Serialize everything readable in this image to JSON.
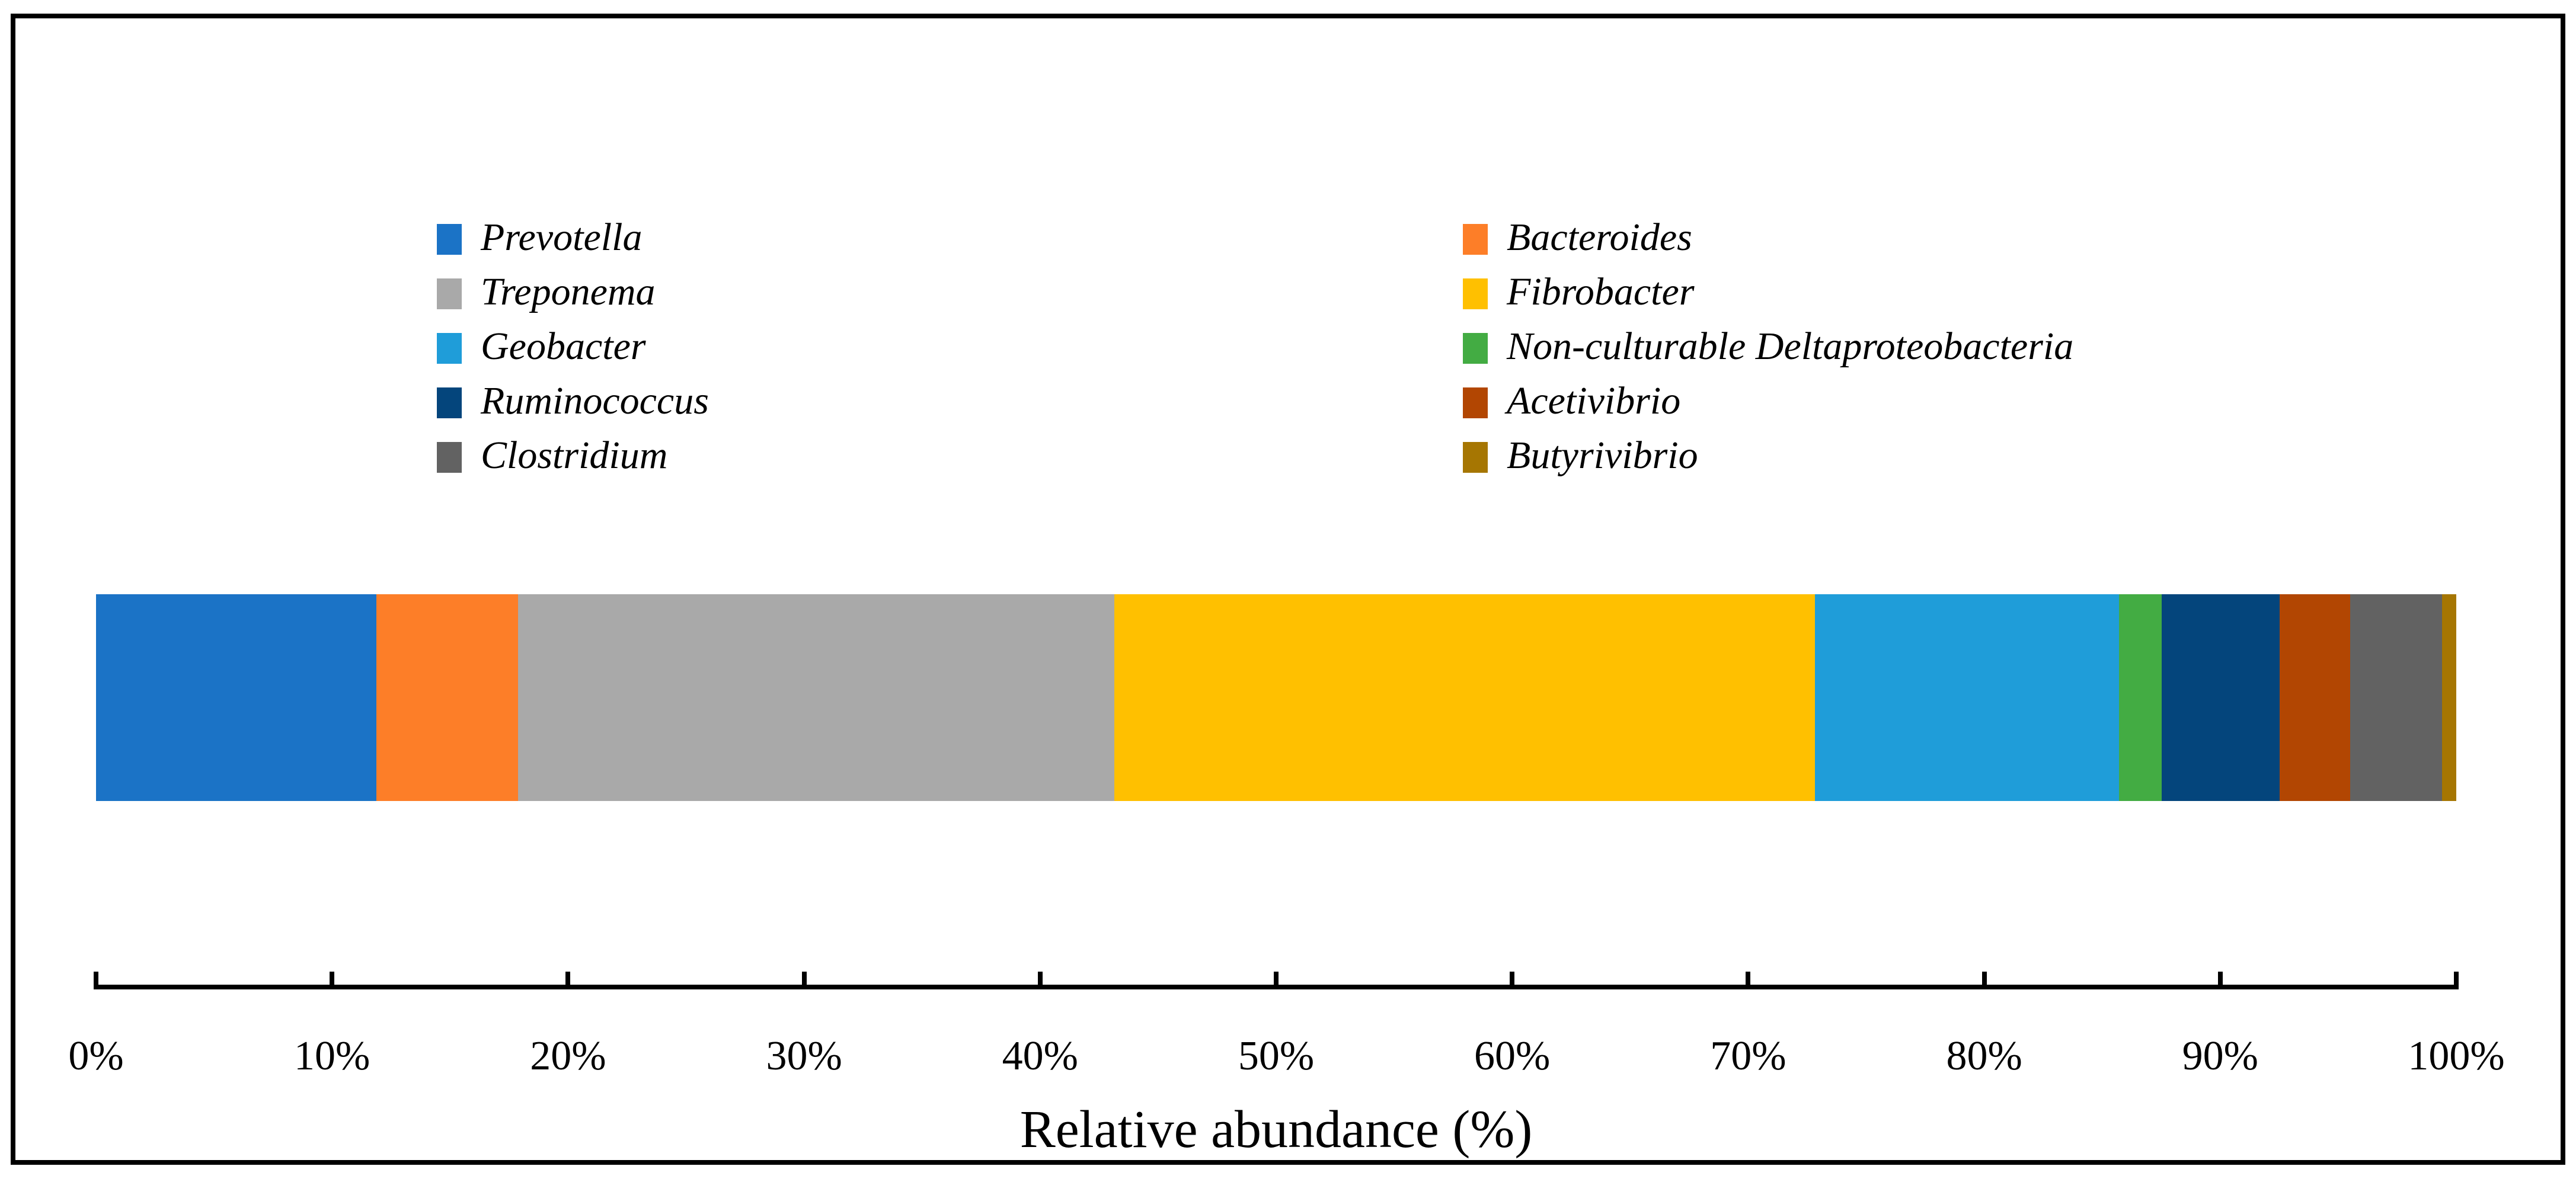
{
  "figure": {
    "background": "#FFFFFF",
    "border_color": "#000000"
  },
  "legend": {
    "columns": [
      {
        "items": [
          {
            "label": "Prevotella",
            "color": "#1B73C6"
          },
          {
            "label": "Treponema",
            "color": "#A9A9A9"
          },
          {
            "label": "Geobacter",
            "color": "#1F9DD9"
          },
          {
            "label": "Ruminococcus",
            "color": "#04457C"
          },
          {
            "label": "Clostridium",
            "color": "#626262"
          }
        ]
      },
      {
        "items": [
          {
            "label": "Bacteroides",
            "color": "#FD7E28"
          },
          {
            "label": "Fibrobacter",
            "color": "#FFC000"
          },
          {
            "label": "Non-culturable Deltaproteobacteria",
            "color": "#43AC43"
          },
          {
            "label": "Acetivibrio",
            "color": "#B24602"
          },
          {
            "label": "Butyrivibrio",
            "color": "#A67602"
          }
        ]
      }
    ]
  },
  "chart_data": {
    "type": "bar",
    "variant": "horizontal-stacked-single-bar",
    "title": "",
    "xlabel": "Relative abundance (%)",
    "units": "percent",
    "xlim": [
      0,
      100
    ],
    "x_ticks": [
      "0%",
      "10%",
      "20%",
      "30%",
      "40%",
      "50%",
      "60%",
      "70%",
      "80%",
      "90%",
      "100%"
    ],
    "grid": false,
    "legend_position": "top-two-columns",
    "series": [
      {
        "name": "Prevotella",
        "value": 11.9,
        "color": "#1B73C6"
      },
      {
        "name": "Bacteroides",
        "value": 6.0,
        "color": "#FD7E28"
      },
      {
        "name": "Treponema",
        "value": 25.3,
        "color": "#A9A9A9"
      },
      {
        "name": "Fibrobacter",
        "value": 29.7,
        "color": "#FFC000"
      },
      {
        "name": "Geobacter",
        "value": 12.9,
        "color": "#1F9DD9"
      },
      {
        "name": "Non-culturable Deltaproteobacteria",
        "value": 1.8,
        "color": "#43AC43"
      },
      {
        "name": "Ruminococcus",
        "value": 5.0,
        "color": "#04457C"
      },
      {
        "name": "Acetivibrio",
        "value": 3.0,
        "color": "#B24602"
      },
      {
        "name": "Clostridium",
        "value": 3.9,
        "color": "#626262"
      },
      {
        "name": "Butyrivibrio",
        "value": 0.6,
        "color": "#A67602"
      }
    ]
  }
}
